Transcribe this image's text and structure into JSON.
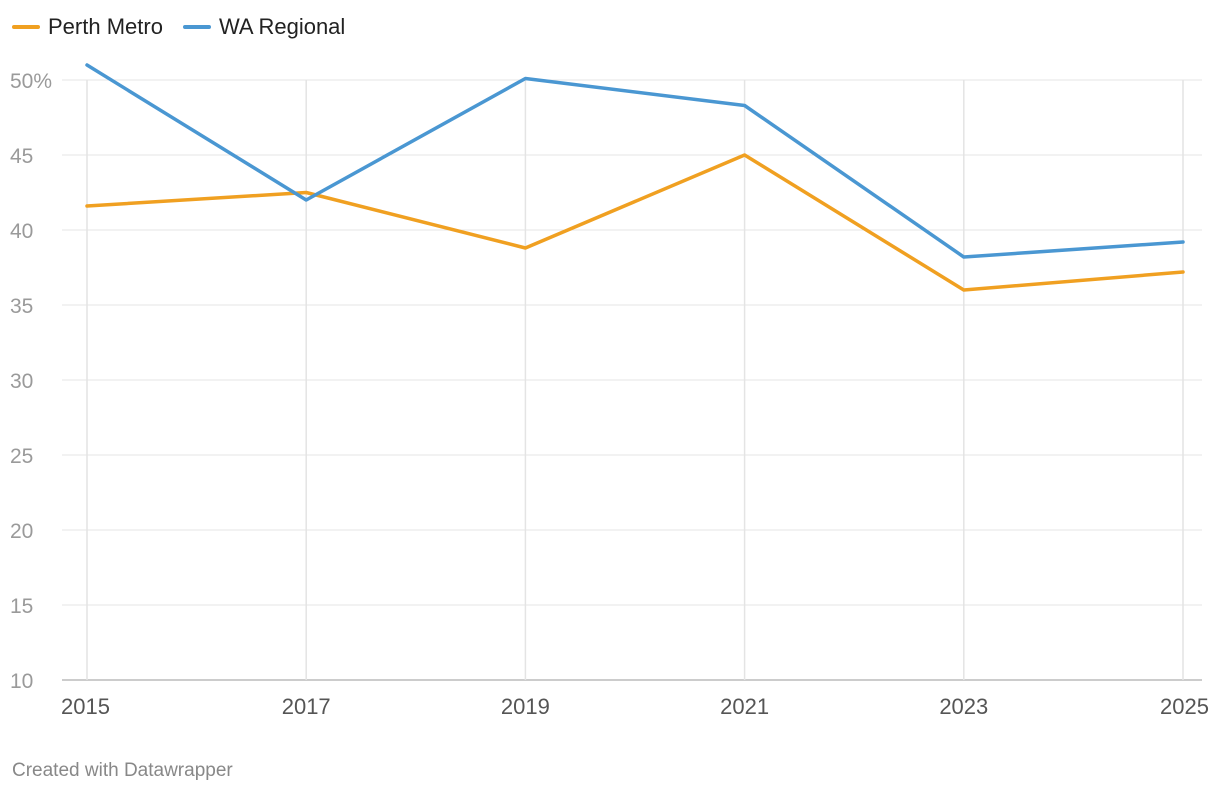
{
  "chart_data": {
    "type": "line",
    "x": [
      "2015",
      "2017",
      "2019",
      "2021",
      "2023",
      "2025"
    ],
    "series": [
      {
        "name": "Perth Metro",
        "color": "#f0a021",
        "values": [
          41.6,
          42.5,
          38.8,
          45.0,
          36.0,
          37.2
        ]
      },
      {
        "name": "WA Regional",
        "color": "#4a97d2",
        "values": [
          51.0,
          42.0,
          50.1,
          48.3,
          38.2,
          39.2
        ]
      }
    ],
    "y_ticks": [
      "50%",
      "45",
      "40",
      "35",
      "30",
      "25",
      "20",
      "15",
      "10"
    ],
    "ylim": [
      10,
      50
    ],
    "grid": true,
    "legend_position": "top-left"
  },
  "footer": {
    "credit": "Created with Datawrapper"
  }
}
